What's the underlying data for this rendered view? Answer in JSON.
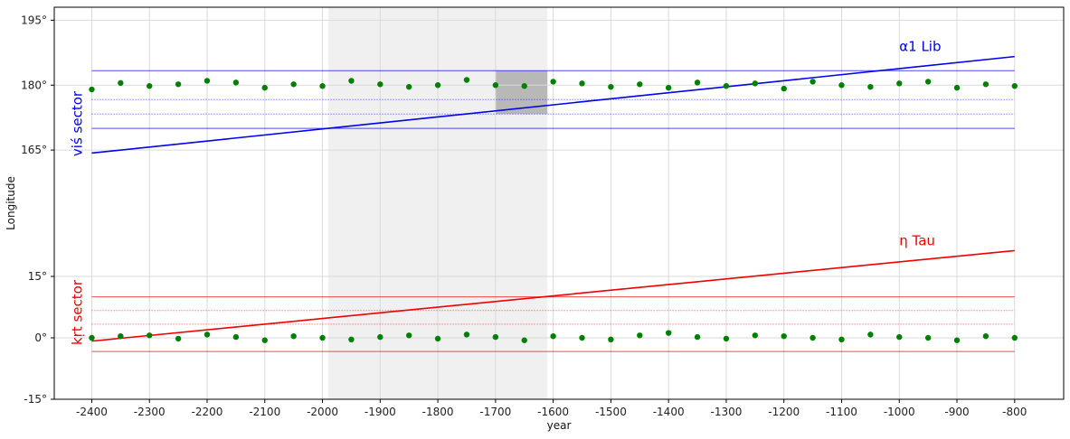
{
  "chart_data": {
    "type": "scatter",
    "xlabel": "year",
    "ylabel": "Longitude",
    "grid": true,
    "x_ticks": [
      -2400,
      -2300,
      -2200,
      -2100,
      -2000,
      -1900,
      -1800,
      -1700,
      -1600,
      -1500,
      -1400,
      -1300,
      -1200,
      -1100,
      -1000,
      -900,
      -800
    ],
    "x_tick_labels": [
      "-2400",
      "-2300",
      "-2200",
      "-2100",
      "-2000",
      "-1900",
      "-1800",
      "-1700",
      "-1600",
      "-1500",
      "-1400",
      "-1300",
      "-1200",
      "-1100",
      "-1000",
      "-900",
      "-800"
    ],
    "y_tick_labels": [
      "195°",
      "180°",
      "165°",
      "15°",
      "0°",
      "-15°"
    ],
    "xlim": [
      -2465,
      -715
    ],
    "panels": [
      {
        "label": "viś sector",
        "color": "#0000ee",
        "ylim": [
          150,
          198
        ],
        "y_ticks": [
          195,
          180,
          165
        ],
        "y_tick_labels": [
          "195°",
          "180°",
          "165°"
        ],
        "hlines": [
          {
            "y": 183.33,
            "style": "solid"
          },
          {
            "y": 176.67,
            "style": "dotted"
          },
          {
            "y": 173.33,
            "style": "dotted"
          },
          {
            "y": 170.0,
            "style": "solid"
          }
        ],
        "star_line": {
          "name": "α1 Lib",
          "x": [
            -2400,
            -800
          ],
          "y": [
            164.3,
            186.6
          ]
        },
        "points_x": [
          -2400,
          -2350,
          -2300,
          -2250,
          -2200,
          -2150,
          -2100,
          -2050,
          -2000,
          -1950,
          -1900,
          -1850,
          -1800,
          -1750,
          -1700,
          -1650,
          -1600,
          -1550,
          -1500,
          -1450,
          -1400,
          -1350,
          -1300,
          -1250,
          -1200,
          -1150,
          -1100,
          -1050,
          -1000,
          -950,
          -900,
          -850,
          -800
        ],
        "points_y": [
          179.0,
          180.5,
          179.8,
          180.2,
          181.0,
          180.6,
          179.4,
          180.2,
          179.8,
          181.0,
          180.2,
          179.6,
          180.0,
          181.2,
          180.0,
          179.8,
          180.8,
          180.4,
          179.6,
          180.2,
          179.4,
          180.6,
          179.8,
          180.4,
          179.2,
          180.8,
          180.0,
          179.6,
          180.4,
          180.8,
          179.4,
          180.2,
          179.8
        ]
      },
      {
        "label": "kṛt sector",
        "color": "#ee0000",
        "ylim": [
          -15,
          30
        ],
        "y_ticks": [
          15,
          0,
          -15
        ],
        "y_tick_labels": [
          "15°",
          "0°",
          "-15°"
        ],
        "hlines": [
          {
            "y": 10.0,
            "style": "solid"
          },
          {
            "y": 6.67,
            "style": "dotted"
          },
          {
            "y": 3.33,
            "style": "dotted"
          },
          {
            "y": -3.33,
            "style": "solid"
          }
        ],
        "star_line": {
          "name": "η Tau",
          "x": [
            -2400,
            -800
          ],
          "y": [
            -0.8,
            21.3
          ]
        },
        "points_x": [
          -2400,
          -2350,
          -2300,
          -2250,
          -2200,
          -2150,
          -2100,
          -2050,
          -2000,
          -1950,
          -1900,
          -1850,
          -1800,
          -1750,
          -1700,
          -1650,
          -1600,
          -1550,
          -1500,
          -1450,
          -1400,
          -1350,
          -1300,
          -1250,
          -1200,
          -1150,
          -1100,
          -1050,
          -1000,
          -950,
          -900,
          -850,
          -800
        ],
        "points_y": [
          0.0,
          0.4,
          0.6,
          -0.2,
          0.8,
          0.2,
          -0.6,
          0.4,
          0.0,
          -0.4,
          0.2,
          0.6,
          -0.2,
          0.8,
          0.2,
          -0.6,
          0.4,
          0.0,
          -0.4,
          0.6,
          1.2,
          0.2,
          -0.2,
          0.6,
          0.4,
          0.0,
          -0.4,
          0.8,
          0.2,
          0.0,
          -0.6,
          0.4,
          0.0
        ]
      }
    ],
    "shaded_x_range": [
      -1990,
      -1610
    ],
    "highlight_box": {
      "x": [
        -1700,
        -1610
      ],
      "y": [
        173.33,
        183.33
      ]
    },
    "marker_color": "#008000"
  },
  "colors": {
    "grid": "#d9d9d9",
    "shade": "#f0f0f0",
    "highlight": "#b8b8b8",
    "frame": "#000000"
  }
}
